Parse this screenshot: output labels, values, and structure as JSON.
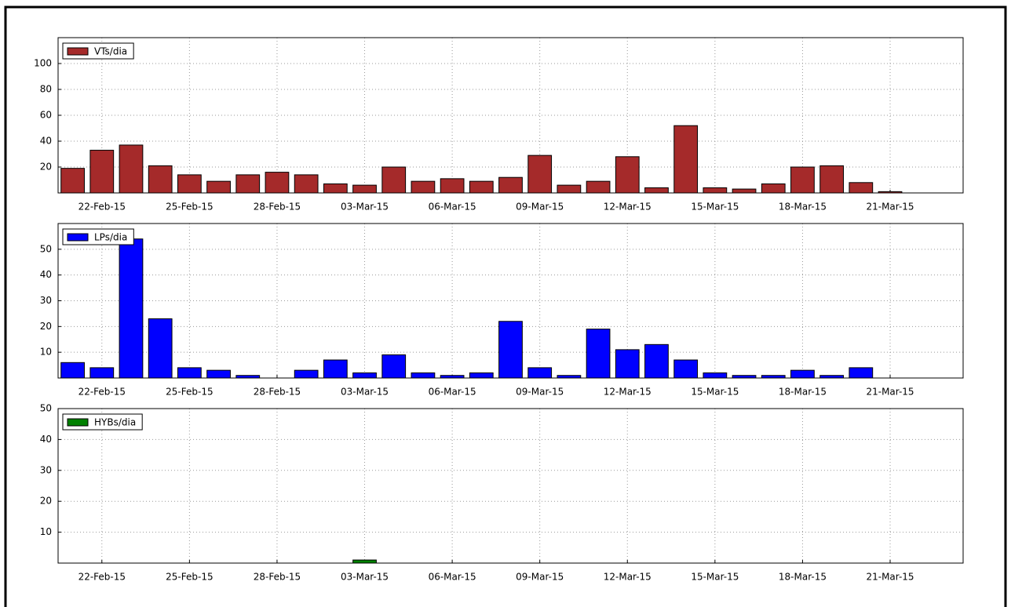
{
  "chart_data": [
    {
      "type": "bar",
      "categories": [
        null,
        "22-Feb-15",
        null,
        null,
        "25-Feb-15",
        null,
        null,
        "28-Feb-15",
        null,
        null,
        "03-Mar-15",
        null,
        null,
        "06-Mar-15",
        null,
        null,
        "09-Mar-15",
        null,
        null,
        "12-Mar-15",
        null,
        null,
        "15-Mar-15",
        null,
        null,
        "18-Mar-15",
        null,
        null,
        "21-Mar-15",
        null,
        null
      ],
      "series": [
        {
          "name": "VTs/dia",
          "color": "#a52a2a",
          "values": [
            19,
            33,
            37,
            21,
            14,
            9,
            14,
            16,
            14,
            7,
            6,
            20,
            9,
            11,
            9,
            12,
            29,
            6,
            9,
            28,
            4,
            52,
            4,
            3,
            7,
            20,
            21,
            8,
            1,
            0,
            0
          ]
        }
      ],
      "ylim": [
        0,
        120
      ],
      "yticks": [
        20,
        40,
        60,
        80,
        100
      ],
      "grid": true,
      "legend": "upper left"
    },
    {
      "type": "bar",
      "categories": [
        null,
        "22-Feb-15",
        null,
        null,
        "25-Feb-15",
        null,
        null,
        "28-Feb-15",
        null,
        null,
        "03-Mar-15",
        null,
        null,
        "06-Mar-15",
        null,
        null,
        "09-Mar-15",
        null,
        null,
        "12-Mar-15",
        null,
        null,
        "15-Mar-15",
        null,
        null,
        "18-Mar-15",
        null,
        null,
        "21-Mar-15",
        null,
        null
      ],
      "series": [
        {
          "name": "LPs/dia",
          "color": "#0000ff",
          "values": [
            6,
            4,
            54,
            23,
            4,
            3,
            1,
            0,
            3,
            7,
            2,
            9,
            2,
            1,
            2,
            22,
            4,
            1,
            19,
            11,
            13,
            7,
            2,
            1,
            1,
            3,
            1,
            4,
            0,
            0,
            0
          ]
        }
      ],
      "ylim": [
        0,
        60
      ],
      "yticks": [
        10,
        20,
        30,
        40,
        50
      ],
      "grid": true,
      "legend": "upper left"
    },
    {
      "type": "bar",
      "categories": [
        null,
        "22-Feb-15",
        null,
        null,
        "25-Feb-15",
        null,
        null,
        "28-Feb-15",
        null,
        null,
        "03-Mar-15",
        null,
        null,
        "06-Mar-15",
        null,
        null,
        "09-Mar-15",
        null,
        null,
        "12-Mar-15",
        null,
        null,
        "15-Mar-15",
        null,
        null,
        "18-Mar-15",
        null,
        null,
        "21-Mar-15",
        null,
        null
      ],
      "series": [
        {
          "name": "HYBs/dia",
          "color": "#008000",
          "values": [
            0,
            0,
            0,
            0,
            0,
            0,
            0,
            0,
            0,
            0,
            1,
            0,
            0,
            0,
            0,
            0,
            0,
            0,
            0,
            0,
            0,
            0,
            0,
            0,
            0,
            0,
            0,
            0,
            0,
            0,
            0
          ]
        }
      ],
      "ylim": [
        0,
        50
      ],
      "yticks": [
        10,
        20,
        30,
        40,
        50
      ],
      "grid": true,
      "legend": "upper left"
    }
  ]
}
